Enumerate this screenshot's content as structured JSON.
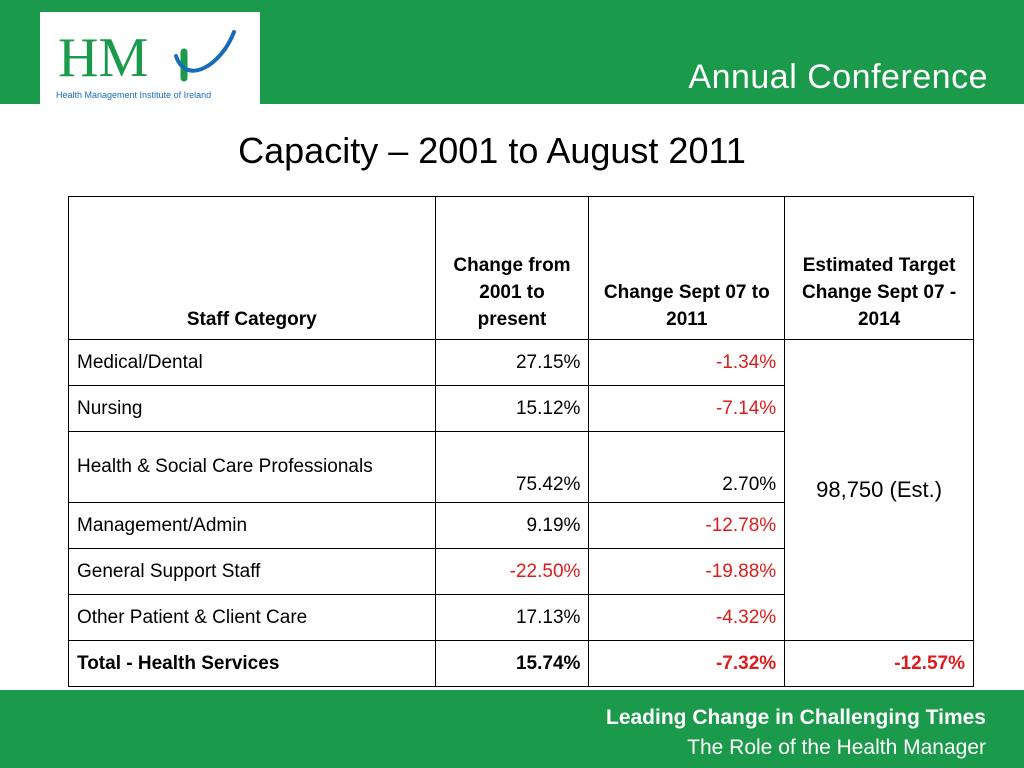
{
  "header": {
    "logo_text": "HMi",
    "logo_caption": "Health Management Institute of Ireland",
    "conference_title": "Annual Conference"
  },
  "slide": {
    "title": "Capacity – 2001 to August 2011"
  },
  "table": {
    "headers": [
      "Staff Category",
      "Change from 2001 to present",
      "Change Sept 07 to 2011",
      "Estimated Target Change Sept 07 - 2014"
    ],
    "rows": [
      {
        "category": "Medical/Dental",
        "change_2001": "27.15%",
        "change_sept07": "-1.34%"
      },
      {
        "category": "Nursing",
        "change_2001": "15.12%",
        "change_sept07": "-7.14%"
      },
      {
        "category": "Health & Social Care Professionals",
        "change_2001": "75.42%",
        "change_sept07": "2.70%"
      },
      {
        "category": "Management/Admin",
        "change_2001": "9.19%",
        "change_sept07": "-12.78%"
      },
      {
        "category": "General Support Staff",
        "change_2001": "-22.50%",
        "change_sept07": "-19.88%"
      },
      {
        "category": "Other Patient & Client Care",
        "change_2001": "17.13%",
        "change_sept07": "-4.32%"
      }
    ],
    "estimated_target": "98,750 (Est.)",
    "total": {
      "category": "Total - Health Services",
      "change_2001": "15.74%",
      "change_sept07": "-7.32%",
      "estimated_target": "-12.57%"
    }
  },
  "footer": {
    "line1": "Leading Change in Challenging Times",
    "line2": "The Role of the Health Manager"
  },
  "colors": {
    "brand_green": "#1a9a4a",
    "negative_red": "#e01b1b"
  }
}
